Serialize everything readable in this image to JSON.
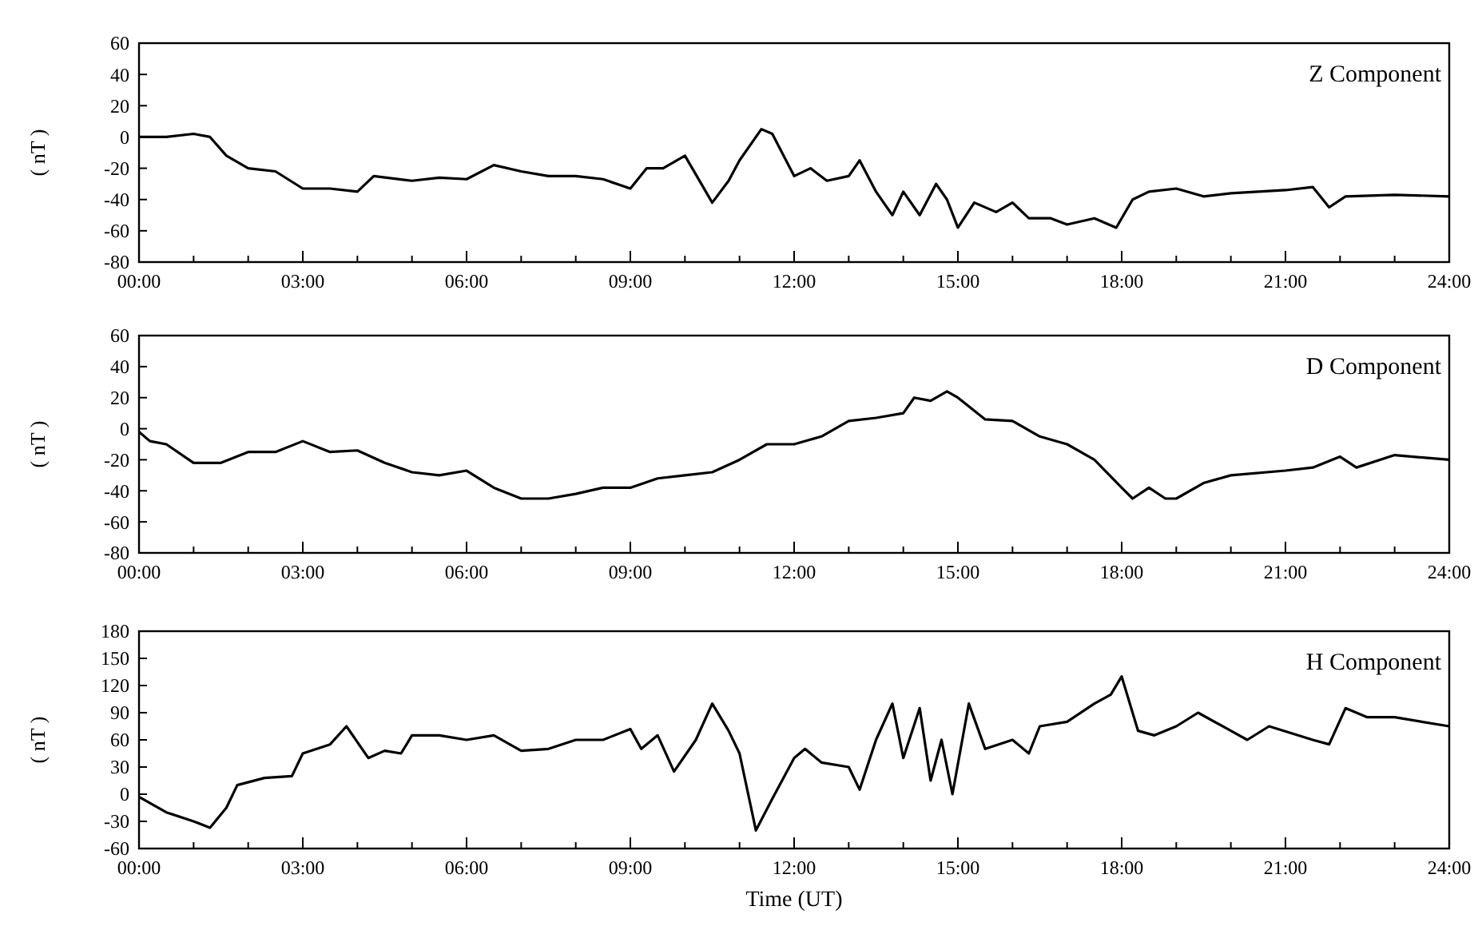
{
  "chart_data": [
    {
      "type": "line",
      "title": "Z Component",
      "ylabel": "( nT )",
      "xlim": [
        0,
        24
      ],
      "ylim": [
        -80,
        60
      ],
      "yticks": [
        -80,
        -60,
        -40,
        -20,
        0,
        20,
        40,
        60
      ],
      "xticks": [
        {
          "value": 0,
          "label": "00:00"
        },
        {
          "value": 1,
          "label": null
        },
        {
          "value": 2,
          "label": null
        },
        {
          "value": 3,
          "label": "03:00"
        },
        {
          "value": 4,
          "label": null
        },
        {
          "value": 5,
          "label": null
        },
        {
          "value": 6,
          "label": "06:00"
        },
        {
          "value": 7,
          "label": null
        },
        {
          "value": 8,
          "label": null
        },
        {
          "value": 9,
          "label": "09:00"
        },
        {
          "value": 10,
          "label": null
        },
        {
          "value": 11,
          "label": null
        },
        {
          "value": 12,
          "label": "12:00"
        },
        {
          "value": 13,
          "label": null
        },
        {
          "value": 14,
          "label": null
        },
        {
          "value": 15,
          "label": "15:00"
        },
        {
          "value": 16,
          "label": null
        },
        {
          "value": 17,
          "label": null
        },
        {
          "value": 18,
          "label": "18:00"
        },
        {
          "value": 19,
          "label": null
        },
        {
          "value": 20,
          "label": null
        },
        {
          "value": 21,
          "label": "21:00"
        },
        {
          "value": 22,
          "label": null
        },
        {
          "value": 23,
          "label": null
        },
        {
          "value": 24,
          "label": "24:00"
        }
      ],
      "x": [
        0,
        0.5,
        1,
        1.3,
        1.6,
        2,
        2.5,
        3,
        3.5,
        4,
        4.3,
        5,
        5.5,
        6,
        6.5,
        7,
        7.5,
        8,
        8.5,
        9,
        9.3,
        9.6,
        10,
        10.3,
        10.5,
        10.8,
        11,
        11.4,
        11.6,
        12,
        12.3,
        12.6,
        13,
        13.2,
        13.5,
        13.8,
        14,
        14.3,
        14.6,
        14.8,
        15,
        15.3,
        15.7,
        16,
        16.3,
        16.7,
        17,
        17.5,
        17.9,
        18.2,
        18.5,
        19,
        19.5,
        20,
        20.5,
        21,
        21.5,
        21.8,
        22.1,
        23,
        24
      ],
      "series": [
        {
          "color": "#000000",
          "values": [
            0,
            0,
            2,
            0,
            -12,
            -20,
            -22,
            -33,
            -33,
            -35,
            -25,
            -28,
            -26,
            -27,
            -18,
            -22,
            -25,
            -25,
            -27,
            -33,
            -20,
            -20,
            -12,
            -30,
            -42,
            -28,
            -15,
            5,
            2,
            -25,
            -20,
            -28,
            -25,
            -15,
            -35,
            -50,
            -35,
            -50,
            -30,
            -40,
            -58,
            -42,
            -48,
            -42,
            -52,
            -52,
            -56,
            -52,
            -58,
            -40,
            -35,
            -33,
            -38,
            -36,
            -35,
            -34,
            -32,
            -45,
            -38,
            -37,
            -38
          ]
        }
      ]
    },
    {
      "type": "line",
      "title": "D Component",
      "ylabel": "( nT )",
      "xlim": [
        0,
        24
      ],
      "ylim": [
        -80,
        60
      ],
      "yticks": [
        -80,
        -60,
        -40,
        -20,
        0,
        20,
        40,
        60
      ],
      "xticks": [
        {
          "value": 0,
          "label": "00:00"
        },
        {
          "value": 1,
          "label": null
        },
        {
          "value": 2,
          "label": null
        },
        {
          "value": 3,
          "label": "03:00"
        },
        {
          "value": 4,
          "label": null
        },
        {
          "value": 5,
          "label": null
        },
        {
          "value": 6,
          "label": "06:00"
        },
        {
          "value": 7,
          "label": null
        },
        {
          "value": 8,
          "label": null
        },
        {
          "value": 9,
          "label": "09:00"
        },
        {
          "value": 10,
          "label": null
        },
        {
          "value": 11,
          "label": null
        },
        {
          "value": 12,
          "label": "12:00"
        },
        {
          "value": 13,
          "label": null
        },
        {
          "value": 14,
          "label": null
        },
        {
          "value": 15,
          "label": "15:00"
        },
        {
          "value": 16,
          "label": null
        },
        {
          "value": 17,
          "label": null
        },
        {
          "value": 18,
          "label": "18:00"
        },
        {
          "value": 19,
          "label": null
        },
        {
          "value": 20,
          "label": null
        },
        {
          "value": 21,
          "label": "21:00"
        },
        {
          "value": 22,
          "label": null
        },
        {
          "value": 23,
          "label": null
        },
        {
          "value": 24,
          "label": "24:00"
        }
      ],
      "x": [
        0,
        0.2,
        0.5,
        1,
        1.5,
        2,
        2.5,
        3,
        3.5,
        4,
        4.5,
        5,
        5.5,
        6,
        6.5,
        7,
        7.5,
        8,
        8.5,
        9,
        9.5,
        10,
        10.5,
        11,
        11.5,
        12,
        12.5,
        13,
        13.5,
        14,
        14.2,
        14.5,
        14.8,
        15,
        15.5,
        16,
        16.5,
        17,
        17.5,
        18,
        18.2,
        18.5,
        18.8,
        19,
        19.5,
        20,
        21,
        21.5,
        22,
        22.3,
        23,
        24
      ],
      "series": [
        {
          "color": "#000000",
          "values": [
            -2,
            -8,
            -10,
            -22,
            -22,
            -15,
            -15,
            -8,
            -15,
            -14,
            -22,
            -28,
            -30,
            -27,
            -38,
            -45,
            -45,
            -42,
            -38,
            -38,
            -32,
            -30,
            -28,
            -20,
            -10,
            -10,
            -5,
            5,
            7,
            10,
            20,
            18,
            24,
            20,
            6,
            5,
            -5,
            -10,
            -20,
            -38,
            -45,
            -38,
            -45,
            -45,
            -35,
            -30,
            -27,
            -25,
            -18,
            -25,
            -17,
            -20
          ]
        }
      ]
    },
    {
      "type": "line",
      "title": "H Component",
      "ylabel": "( nT )",
      "xlabel": "Time (UT)",
      "xlim": [
        0,
        24
      ],
      "ylim": [
        -60,
        180
      ],
      "yticks": [
        -60,
        -30,
        0,
        30,
        60,
        90,
        120,
        150,
        180
      ],
      "xticks": [
        {
          "value": 0,
          "label": "00:00"
        },
        {
          "value": 1,
          "label": null
        },
        {
          "value": 2,
          "label": null
        },
        {
          "value": 3,
          "label": "03:00"
        },
        {
          "value": 4,
          "label": null
        },
        {
          "value": 5,
          "label": null
        },
        {
          "value": 6,
          "label": "06:00"
        },
        {
          "value": 7,
          "label": null
        },
        {
          "value": 8,
          "label": null
        },
        {
          "value": 9,
          "label": "09:00"
        },
        {
          "value": 10,
          "label": null
        },
        {
          "value": 11,
          "label": null
        },
        {
          "value": 12,
          "label": "12:00"
        },
        {
          "value": 13,
          "label": null
        },
        {
          "value": 14,
          "label": null
        },
        {
          "value": 15,
          "label": "15:00"
        },
        {
          "value": 16,
          "label": null
        },
        {
          "value": 17,
          "label": null
        },
        {
          "value": 18,
          "label": "18:00"
        },
        {
          "value": 19,
          "label": null
        },
        {
          "value": 20,
          "label": null
        },
        {
          "value": 21,
          "label": "21:00"
        },
        {
          "value": 22,
          "label": null
        },
        {
          "value": 23,
          "label": null
        },
        {
          "value": 24,
          "label": "24:00"
        }
      ],
      "x": [
        0,
        0.5,
        1,
        1.3,
        1.6,
        1.8,
        2.3,
        2.8,
        3,
        3.5,
        3.8,
        4.2,
        4.5,
        4.8,
        5,
        5.5,
        6,
        6.5,
        7,
        7.5,
        8,
        8.5,
        9,
        9.2,
        9.5,
        9.8,
        10.2,
        10.5,
        10.8,
        11,
        11.3,
        11.6,
        12,
        12.2,
        12.5,
        13,
        13.2,
        13.5,
        13.8,
        14,
        14.3,
        14.5,
        14.7,
        14.9,
        15.2,
        15.5,
        16,
        16.3,
        16.5,
        17,
        17.5,
        17.8,
        18,
        18.3,
        18.6,
        19,
        19.4,
        20,
        20.3,
        20.7,
        21.5,
        21.8,
        22.1,
        22.5,
        23,
        24
      ],
      "series": [
        {
          "color": "#000000",
          "values": [
            -3,
            -20,
            -30,
            -37,
            -15,
            10,
            18,
            20,
            45,
            55,
            75,
            40,
            48,
            45,
            65,
            65,
            60,
            65,
            48,
            50,
            60,
            60,
            72,
            50,
            65,
            25,
            60,
            100,
            70,
            45,
            -40,
            -5,
            40,
            50,
            35,
            30,
            5,
            60,
            100,
            40,
            95,
            15,
            60,
            0,
            100,
            50,
            60,
            45,
            75,
            80,
            100,
            110,
            130,
            70,
            65,
            75,
            90,
            70,
            60,
            75,
            60,
            55,
            95,
            85,
            85,
            75
          ]
        }
      ]
    }
  ]
}
